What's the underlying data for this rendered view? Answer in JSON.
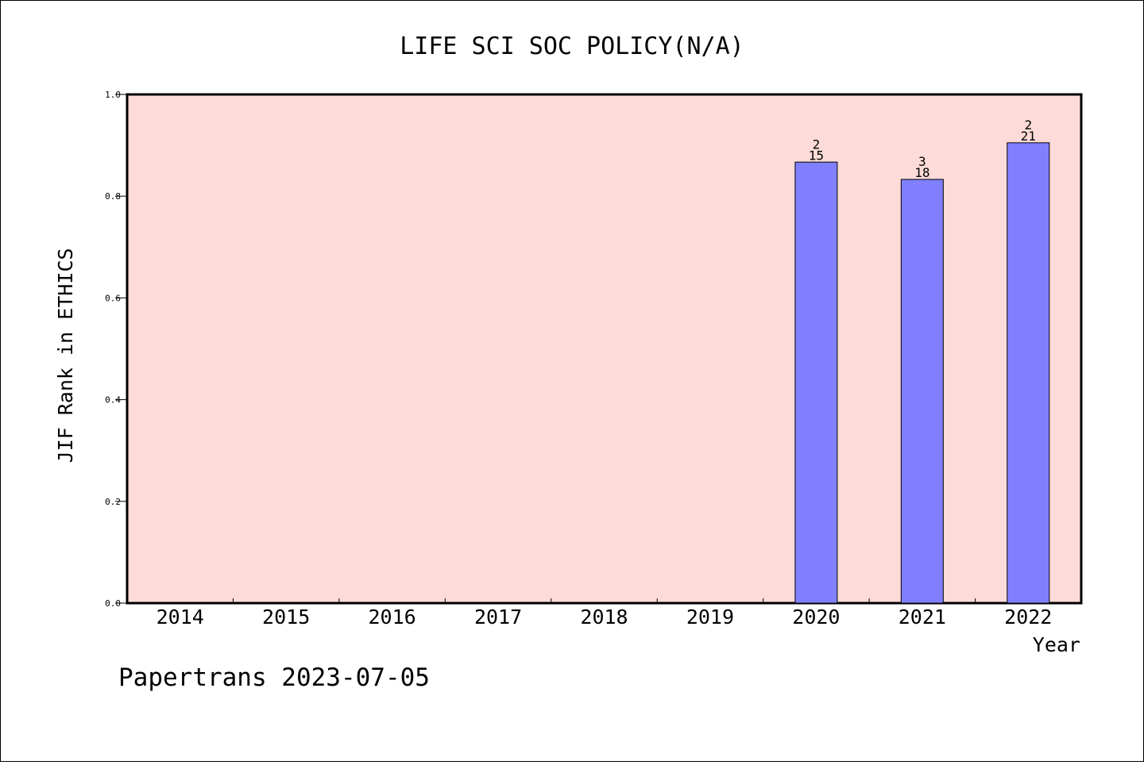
{
  "chart_data": {
    "type": "bar",
    "title": "LIFE SCI SOC POLICY(N/A)",
    "xlabel": "Year",
    "ylabel": "JIF Rank in ETHICS",
    "categories": [
      "2014",
      "2015",
      "2016",
      "2017",
      "2018",
      "2019",
      "2020",
      "2021",
      "2022"
    ],
    "series": [
      {
        "values": [
          null,
          null,
          null,
          null,
          null,
          null,
          0.867,
          0.833,
          0.905
        ],
        "rank": [
          null,
          null,
          null,
          null,
          null,
          null,
          "2",
          "3",
          "2"
        ],
        "total": [
          null,
          null,
          null,
          null,
          null,
          null,
          "15",
          "18",
          "21"
        ]
      }
    ],
    "ylim": [
      0,
      1.0
    ],
    "yticks": [
      "0.0",
      "0.2",
      "0.4",
      "0.6",
      "0.8",
      "1.0"
    ],
    "footer": "Papertrans 2023-07-05",
    "colors": {
      "plot_background": "#fddbd8",
      "bar_fill": "#8080ff",
      "bar_stroke": "#000000"
    },
    "grid": false,
    "legend": "none"
  }
}
